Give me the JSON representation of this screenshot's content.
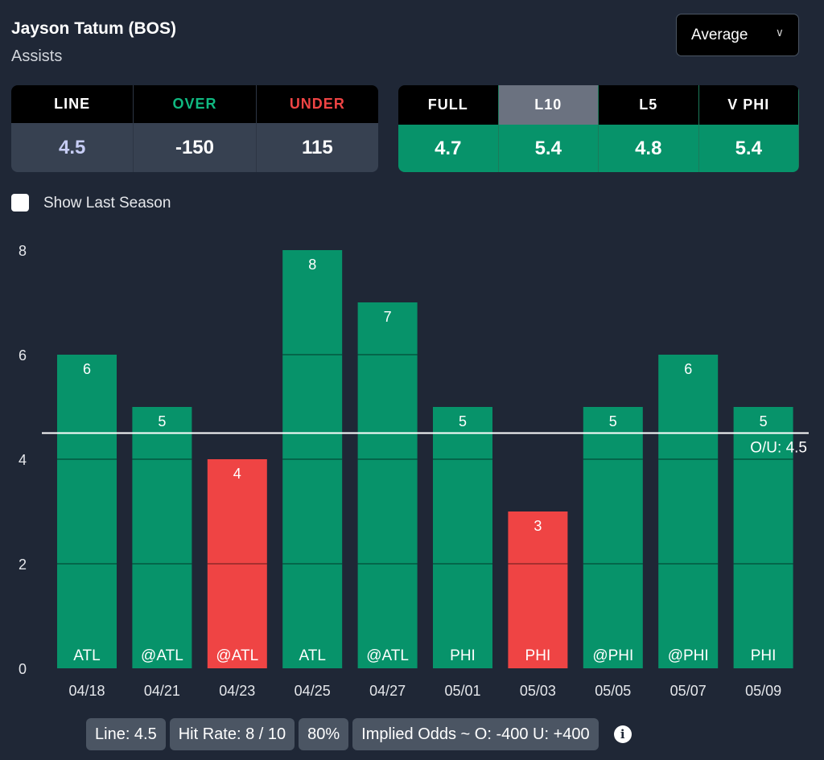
{
  "header": {
    "title": "Jayson Tatum (BOS)",
    "stat": "Assists",
    "select": "Average"
  },
  "odds": {
    "headers": [
      "LINE",
      "OVER",
      "UNDER"
    ],
    "values": [
      "4.5",
      "-150",
      "115"
    ],
    "colors": [
      "#ffffff",
      "#10b981",
      "#ef4444"
    ],
    "value_colors": [
      "#c7cdf5",
      "#ffffff",
      "#ffffff"
    ]
  },
  "averages": {
    "headers": [
      "FULL",
      "L10",
      "L5",
      "V PHI"
    ],
    "values": [
      "4.7",
      "5.4",
      "4.8",
      "5.4"
    ],
    "selected": "L10"
  },
  "toggle": {
    "label": "Show Last Season",
    "checked": false
  },
  "chart_data": {
    "type": "bar",
    "categories": [
      "04/18",
      "04/21",
      "04/23",
      "04/25",
      "04/27",
      "05/01",
      "05/03",
      "05/05",
      "05/07",
      "05/09"
    ],
    "opponents": [
      "ATL",
      "@ATL",
      "@ATL",
      "ATL",
      "@ATL",
      "PHI",
      "PHI",
      "@PHI",
      "@PHI",
      "PHI"
    ],
    "values": [
      6,
      5,
      4,
      8,
      7,
      5,
      3,
      5,
      6,
      5
    ],
    "yticks": [
      "0",
      "2",
      "4",
      "6",
      "8"
    ],
    "ylim": [
      0,
      8
    ],
    "line": 4.5,
    "line_label": "O/U: 4.5",
    "over_color": "#07936a",
    "under_color": "#ef4444"
  },
  "footer": {
    "line": "Line: 4.5",
    "hit_rate": "Hit Rate: 8 / 10",
    "pct": "80%",
    "implied": "Implied Odds ~ O: -400 U: +400",
    "info_icon": "i"
  }
}
